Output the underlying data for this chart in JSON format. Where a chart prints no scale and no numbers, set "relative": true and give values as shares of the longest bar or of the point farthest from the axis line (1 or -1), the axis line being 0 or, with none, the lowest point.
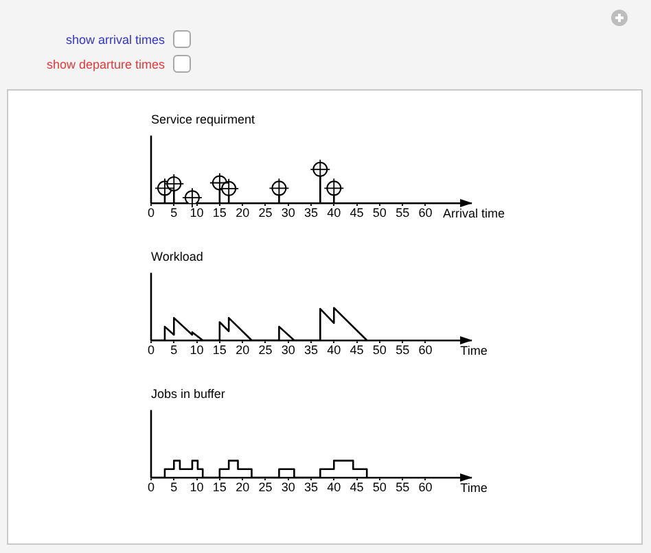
{
  "chart_data": [
    {
      "type": "other",
      "annotations": [
        "show arrival times",
        "show departure times"
      ]
    },
    {
      "type": "lollipop",
      "title": "Service requirment",
      "xlabel": "Arrival time",
      "x": [
        3,
        5,
        9,
        15,
        17,
        28,
        37,
        40
      ],
      "values": [
        0.44,
        0.57,
        0.16,
        0.6,
        0.43,
        0.44,
        1,
        0.44
      ],
      "color": "#000000",
      "marker": "circle",
      "relative": true,
      "xlim": [
        0,
        70
      ],
      "xticks": [
        0,
        5,
        10,
        15,
        20,
        25,
        30,
        35,
        40,
        45,
        50,
        55,
        60
      ]
    },
    {
      "type": "line",
      "title": "Workload",
      "xlabel": "Time",
      "x": [
        0,
        3,
        3,
        5,
        5,
        9,
        9,
        11.3,
        15,
        15,
        17,
        17,
        22,
        28,
        28,
        31.3,
        37,
        37,
        40,
        40,
        47.2
      ],
      "values": [
        0,
        0,
        0.42,
        0.17,
        0.69,
        0.17,
        0.25,
        0,
        0,
        0.56,
        0.28,
        0.69,
        0,
        0,
        0.42,
        0,
        0,
        0.97,
        0.53,
        1,
        0
      ],
      "color": "#000000",
      "relative": true,
      "xlim": [
        0,
        70
      ],
      "xticks": [
        0,
        5,
        10,
        15,
        20,
        25,
        30,
        35,
        40,
        45,
        50,
        55,
        60
      ]
    },
    {
      "type": "step",
      "title": "Jobs in buffer",
      "xlabel": "Time",
      "x": [
        0,
        3,
        5,
        6.3,
        9,
        10.2,
        11.3,
        15,
        17,
        19,
        22,
        28,
        31.3,
        37,
        40,
        44.2,
        47.2
      ],
      "values": [
        0,
        0.5,
        1,
        0.5,
        1,
        0.5,
        0,
        0.5,
        1,
        0.5,
        0,
        0.5,
        0,
        0.5,
        1,
        0.5,
        0
      ],
      "color": "#000000",
      "relative": true,
      "xlim": [
        0,
        70
      ],
      "xticks": [
        0,
        5,
        10,
        15,
        20,
        25,
        30,
        35,
        40,
        45,
        50,
        55,
        60
      ]
    }
  ]
}
